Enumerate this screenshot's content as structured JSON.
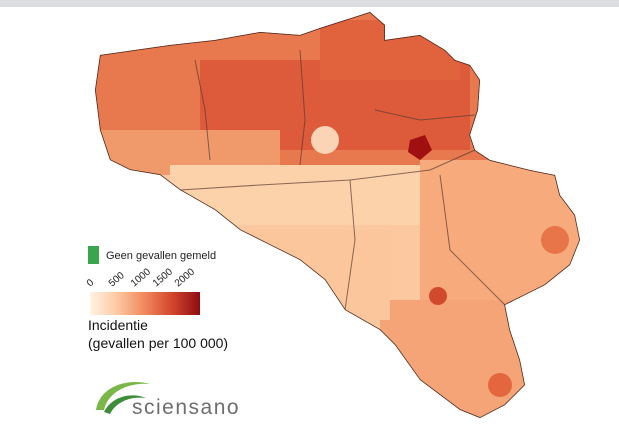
{
  "legend": {
    "no_cases_label": "Geen gevallen gemeld",
    "no_cases_color": "#3aa64b",
    "range": [
      0,
      2500
    ],
    "ticks": [
      0,
      500,
      1000,
      1500,
      2000
    ],
    "colors": [
      "#fff3e6",
      "#fcc8a0",
      "#f1875c",
      "#d2452b",
      "#8e0c12"
    ],
    "title": [
      "Incidentie",
      "(gevallen per 100 000)"
    ]
  },
  "logo": {
    "text": "sciensano"
  }
}
